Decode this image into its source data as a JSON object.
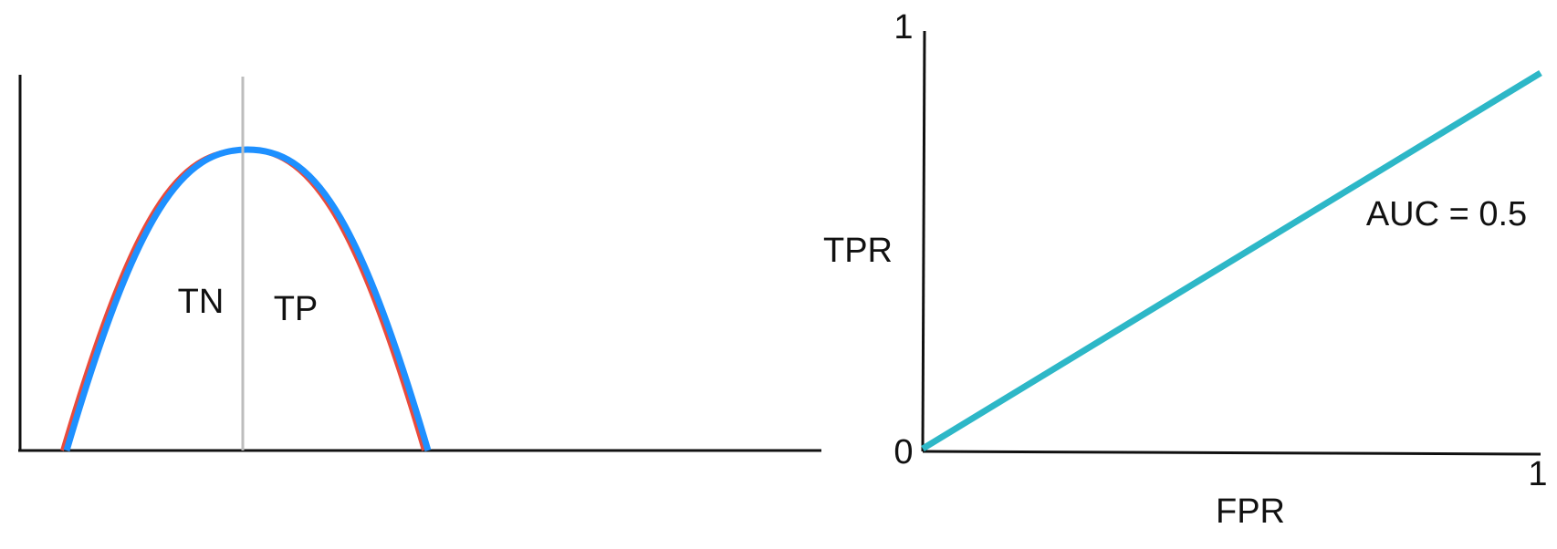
{
  "left_panel": {
    "region_labels": {
      "left": "TN",
      "right": "TP"
    }
  },
  "right_panel": {
    "y_axis": {
      "label": "TPR",
      "max_tick": "1",
      "origin_tick": "0"
    },
    "x_axis": {
      "label": "FPR",
      "max_tick": "1"
    },
    "annotation": "AUC = 0.5"
  },
  "colors": {
    "axes": "#111111",
    "threshold_line": "#bdbdbd",
    "negative_curve": "#e94b3c",
    "positive_curve": "#1e90ff",
    "roc_line": "#2db7c7"
  }
}
